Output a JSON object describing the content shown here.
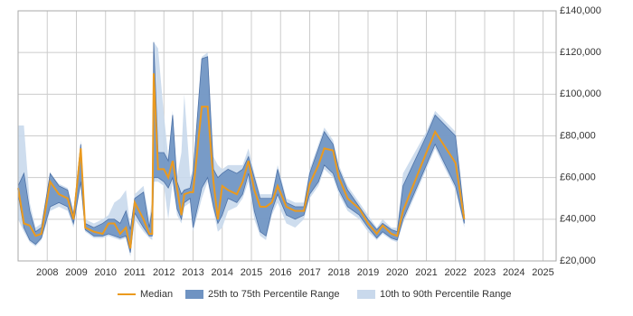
{
  "chart_data": {
    "type": "line",
    "x": [
      2007.0,
      2007.2,
      2007.4,
      2007.6,
      2007.8,
      2008.1,
      2008.4,
      2008.7,
      2008.9,
      2009.15,
      2009.3,
      2009.6,
      2009.9,
      2010.1,
      2010.3,
      2010.5,
      2010.7,
      2010.85,
      2011.0,
      2011.3,
      2011.5,
      2011.6,
      2011.65,
      2011.8,
      2012.0,
      2012.15,
      2012.3,
      2012.45,
      2012.6,
      2012.7,
      2012.9,
      2013.0,
      2013.3,
      2013.5,
      2013.7,
      2013.85,
      2014.0,
      2014.2,
      2014.5,
      2014.7,
      2014.9,
      2015.1,
      2015.3,
      2015.5,
      2015.7,
      2015.9,
      2016.2,
      2016.5,
      2016.8,
      2017.0,
      2017.3,
      2017.5,
      2017.8,
      2018.0,
      2018.3,
      2018.7,
      2019.0,
      2019.3,
      2019.5,
      2019.8,
      2020.0,
      2020.2,
      2021.0,
      2021.3,
      2022.0,
      2022.3
    ],
    "series": [
      {
        "name": "10th to 90th Percentile Range",
        "kind": "range",
        "color": "#c9d9ec",
        "low": [
          40000,
          34000,
          29000,
          27000,
          30000,
          44000,
          46000,
          44000,
          36000,
          56000,
          34000,
          31000,
          31000,
          32000,
          31000,
          30000,
          31000,
          22000,
          40000,
          34000,
          31000,
          30000,
          58000,
          58000,
          56000,
          40000,
          58000,
          42000,
          38000,
          46000,
          48000,
          34000,
          50000,
          58000,
          44000,
          34000,
          36000,
          44000,
          46000,
          50000,
          58000,
          40000,
          32000,
          30000,
          42000,
          48000,
          38000,
          36000,
          40000,
          50000,
          56000,
          64000,
          60000,
          52000,
          44000,
          40000,
          34000,
          30000,
          33000,
          30000,
          29000,
          38000,
          64000,
          74000,
          54000,
          36000
        ],
        "high": [
          85000,
          85000,
          48000,
          36000,
          38000,
          62000,
          57000,
          55000,
          44000,
          78000,
          40000,
          38000,
          40000,
          42000,
          48000,
          50000,
          54000,
          36000,
          52000,
          56000,
          40000,
          50000,
          125000,
          122000,
          90000,
          70000,
          92000,
          60000,
          72000,
          100000,
          60000,
          64000,
          118000,
          120000,
          70000,
          66000,
          64000,
          66000,
          66000,
          66000,
          74000,
          62000,
          52000,
          52000,
          52000,
          66000,
          50000,
          48000,
          48000,
          64000,
          76000,
          84000,
          78000,
          66000,
          56000,
          48000,
          42000,
          36000,
          40000,
          36000,
          36000,
          62000,
          82000,
          92000,
          82000,
          44000
        ]
      },
      {
        "name": "25th to 75th Percentile Range",
        "kind": "range",
        "color": "#6f93c2",
        "low": [
          52000,
          36000,
          30000,
          28000,
          31000,
          46000,
          48000,
          46000,
          38000,
          58000,
          35000,
          32000,
          32000,
          33000,
          32000,
          31000,
          32000,
          24000,
          43000,
          36000,
          32000,
          32000,
          60000,
          60000,
          58000,
          55000,
          60000,
          45000,
          40000,
          48000,
          50000,
          36000,
          55000,
          60000,
          46000,
          38000,
          42000,
          50000,
          48000,
          52000,
          62000,
          44000,
          34000,
          32000,
          44000,
          52000,
          42000,
          40000,
          42000,
          52000,
          58000,
          66000,
          62000,
          54000,
          46000,
          42000,
          36000,
          31000,
          34000,
          31000,
          30000,
          40000,
          66000,
          76000,
          56000,
          38000
        ],
        "high": [
          56000,
          62000,
          44000,
          34000,
          36000,
          62000,
          56000,
          54000,
          42000,
          76000,
          38000,
          36000,
          38000,
          40000,
          40000,
          38000,
          44000,
          35000,
          50000,
          53000,
          36000,
          45000,
          125000,
          72000,
          72000,
          68000,
          90000,
          58000,
          52000,
          54000,
          55000,
          62000,
          117000,
          118000,
          64000,
          60000,
          62000,
          64000,
          62000,
          64000,
          70000,
          60000,
          50000,
          50000,
          50000,
          64000,
          48000,
          46000,
          46000,
          62000,
          74000,
          82000,
          76000,
          64000,
          54000,
          46000,
          40000,
          35000,
          38000,
          35000,
          34000,
          56000,
          80000,
          90000,
          80000,
          42000
        ]
      },
      {
        "name": "Median",
        "kind": "line",
        "color": "#eb9a1e",
        "values": [
          55000,
          38000,
          37000,
          32000,
          33000,
          58000,
          52000,
          50000,
          40000,
          74000,
          36000,
          34000,
          33000,
          38000,
          38000,
          33000,
          36000,
          26000,
          48000,
          40000,
          33000,
          33000,
          110000,
          64000,
          64000,
          60000,
          68000,
          55000,
          42000,
          52000,
          53000,
          53000,
          94000,
          94000,
          58000,
          40000,
          56000,
          54000,
          52000,
          58000,
          68000,
          54000,
          46000,
          46000,
          48000,
          56000,
          46000,
          44000,
          44000,
          57000,
          66000,
          74000,
          73000,
          60000,
          50000,
          45000,
          38000,
          33000,
          37000,
          33000,
          32000,
          44000,
          72000,
          82000,
          67000,
          40000
        ]
      }
    ],
    "legend_order": [
      2,
      1,
      0
    ],
    "xlim": [
      2007.0,
      2025.45
    ],
    "xticks": [
      2008,
      2009,
      2010,
      2011,
      2012,
      2013,
      2014,
      2015,
      2016,
      2017,
      2018,
      2019,
      2020,
      2021,
      2022,
      2023,
      2024,
      2025
    ],
    "ylim": [
      20000,
      140000
    ],
    "yticks": [
      {
        "value": 20000,
        "label": "£20,000"
      },
      {
        "value": 40000,
        "label": "£40,000"
      },
      {
        "value": 60000,
        "label": "£60,000"
      },
      {
        "value": 80000,
        "label": "£80,000"
      },
      {
        "value": 100000,
        "label": "£100,000"
      },
      {
        "value": 120000,
        "label": "£120,000"
      },
      {
        "value": 140000,
        "label": "£140,000"
      }
    ],
    "grid": true
  }
}
